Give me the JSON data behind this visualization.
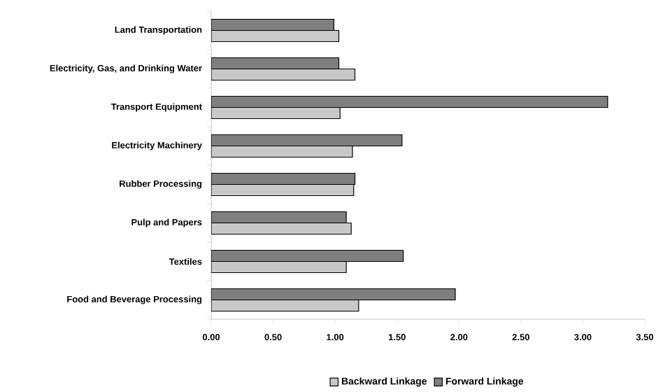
{
  "chart_data": {
    "type": "bar",
    "orientation": "horizontal",
    "categories": [
      "Land Transportation",
      "Electricity, Gas, and Drinking Water",
      "Transport Equipment",
      "Electricity Machinery",
      "Rubber Processing",
      "Pulp and Papers",
      "Textiles",
      "Food and Beverage Processing"
    ],
    "series": [
      {
        "name": "Backward Linkage",
        "color": "#c8c8c8",
        "values": [
          1.03,
          1.16,
          1.04,
          1.14,
          1.15,
          1.13,
          1.09,
          1.19
        ]
      },
      {
        "name": "Forward Linkage",
        "color": "#7f7f7f",
        "values": [
          0.99,
          1.03,
          3.2,
          1.54,
          1.16,
          1.09,
          1.55,
          1.97
        ]
      }
    ],
    "xlim": [
      0,
      3.5
    ],
    "xticks": [
      {
        "value": 0,
        "label": "0.00"
      },
      {
        "value": 0.5,
        "label": "0.50"
      },
      {
        "value": 1,
        "label": "1.00"
      },
      {
        "value": 1.5,
        "label": "1.50"
      },
      {
        "value": 2,
        "label": "2.00"
      },
      {
        "value": 2.5,
        "label": "2.50"
      },
      {
        "value": 3,
        "label": "3.00"
      },
      {
        "value": 3.5,
        "label": "3.50"
      }
    ],
    "grid": false,
    "legend": "bottom"
  }
}
